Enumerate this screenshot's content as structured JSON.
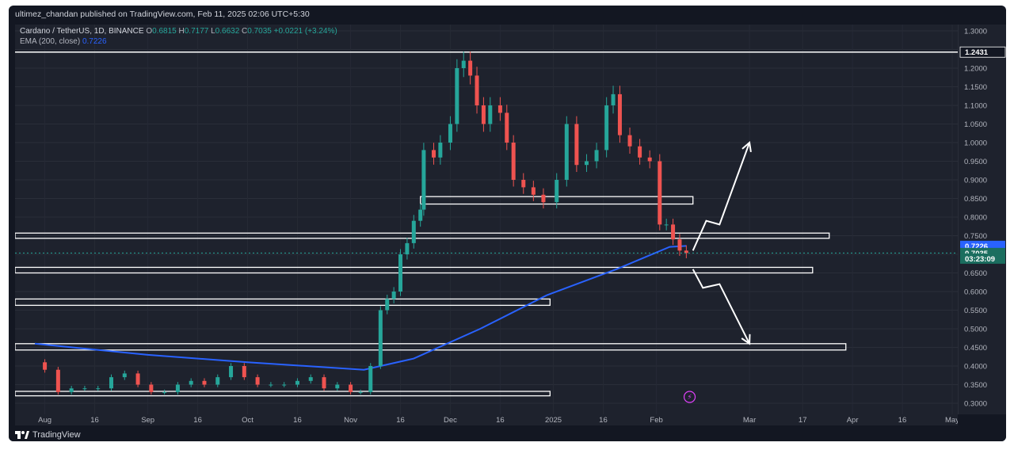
{
  "publish_line": "ultimez_chandan published on TradingView.com, Feb 11, 2025 02:06 UTC+5:30",
  "legend": {
    "symbol": "Cardano / TetherUS, 1D, BINANCE",
    "o_label": "O",
    "o": "0.6815",
    "h_label": "H",
    "h": "0.7177",
    "l_label": "L",
    "l": "0.6632",
    "c_label": "C",
    "c": "0.7035",
    "change": "+0.0221 (+3.24%)",
    "ema_label": "EMA (200, close)",
    "ema_value": "0.7226"
  },
  "footer": {
    "brand": "TradingView"
  },
  "colors": {
    "background": "#1e222d",
    "up": "#26a69a",
    "down": "#ef5350",
    "ema": "#2962ff",
    "zone_outline": "#ffffff"
  },
  "chart_data": {
    "type": "candlestick",
    "title": "Cardano / TetherUS, 1D, BINANCE",
    "xlabel": "",
    "ylabel": "",
    "ylim": [
      0.28,
      1.31
    ],
    "x_tick_labels": [
      "Aug",
      "16",
      "Sep",
      "16",
      "Oct",
      "16",
      "Nov",
      "16",
      "Dec",
      "16",
      "2025",
      "16",
      "Feb",
      "Mar",
      "17",
      "Apr",
      "16",
      "May"
    ],
    "y_ticks": [
      "1.3000",
      "1.2500",
      "1.2000",
      "1.1500",
      "1.1000",
      "1.0500",
      "1.0000",
      "0.9500",
      "0.9000",
      "0.8500",
      "0.8000",
      "0.7500",
      "0.7000",
      "0.6500",
      "0.6000",
      "0.5500",
      "0.5000",
      "0.4500",
      "0.4000",
      "0.3500",
      "0.3000"
    ],
    "price_labels": [
      {
        "text": "1.2431",
        "value": 1.2431,
        "style": "line"
      },
      {
        "text": "0.7226",
        "value": 0.7226,
        "style": "ema"
      },
      {
        "text": "0.7035",
        "value": 0.7035,
        "style": "last"
      },
      {
        "text": "03:23:09",
        "value": 0.6885,
        "style": "countdown"
      }
    ],
    "series_close": [
      [
        "2024-07-29",
        0.41
      ],
      [
        "2024-08-01",
        0.39
      ],
      [
        "2024-08-05",
        0.33
      ],
      [
        "2024-08-09",
        0.34
      ],
      [
        "2024-08-13",
        0.34
      ],
      [
        "2024-08-17",
        0.34
      ],
      [
        "2024-08-21",
        0.37
      ],
      [
        "2024-08-25",
        0.38
      ],
      [
        "2024-08-29",
        0.35
      ],
      [
        "2024-09-02",
        0.33
      ],
      [
        "2024-09-06",
        0.33
      ],
      [
        "2024-09-10",
        0.35
      ],
      [
        "2024-09-14",
        0.36
      ],
      [
        "2024-09-18",
        0.35
      ],
      [
        "2024-09-22",
        0.37
      ],
      [
        "2024-09-26",
        0.4
      ],
      [
        "2024-09-30",
        0.37
      ],
      [
        "2024-10-04",
        0.35
      ],
      [
        "2024-10-08",
        0.35
      ],
      [
        "2024-10-12",
        0.35
      ],
      [
        "2024-10-16",
        0.36
      ],
      [
        "2024-10-20",
        0.37
      ],
      [
        "2024-10-24",
        0.34
      ],
      [
        "2024-10-28",
        0.35
      ],
      [
        "2024-11-01",
        0.33
      ],
      [
        "2024-11-04",
        0.33
      ],
      [
        "2024-11-07",
        0.4
      ],
      [
        "2024-11-10",
        0.55
      ],
      [
        "2024-11-12",
        0.58
      ],
      [
        "2024-11-14",
        0.6
      ],
      [
        "2024-11-16",
        0.7
      ],
      [
        "2024-11-18",
        0.73
      ],
      [
        "2024-11-20",
        0.79
      ],
      [
        "2024-11-22",
        0.82
      ],
      [
        "2024-11-23",
        0.98
      ],
      [
        "2024-11-26",
        0.96
      ],
      [
        "2024-11-28",
        1.0
      ],
      [
        "2024-12-01",
        1.05
      ],
      [
        "2024-12-03",
        1.2
      ],
      [
        "2024-12-05",
        1.22
      ],
      [
        "2024-12-07",
        1.18
      ],
      [
        "2024-12-09",
        1.1
      ],
      [
        "2024-12-11",
        1.05
      ],
      [
        "2024-12-13",
        1.1
      ],
      [
        "2024-12-16",
        1.08
      ],
      [
        "2024-12-18",
        1.0
      ],
      [
        "2024-12-20",
        0.9
      ],
      [
        "2024-12-23",
        0.88
      ],
      [
        "2024-12-26",
        0.86
      ],
      [
        "2024-12-29",
        0.84
      ],
      [
        "2025-01-02",
        0.9
      ],
      [
        "2025-01-05",
        1.05
      ],
      [
        "2025-01-08",
        0.94
      ],
      [
        "2025-01-11",
        0.95
      ],
      [
        "2025-01-14",
        0.98
      ],
      [
        "2025-01-17",
        1.1
      ],
      [
        "2025-01-19",
        1.13
      ],
      [
        "2025-01-21",
        1.02
      ],
      [
        "2025-01-24",
        0.99
      ],
      [
        "2025-01-27",
        0.96
      ],
      [
        "2025-01-30",
        0.95
      ],
      [
        "2025-02-02",
        0.78
      ],
      [
        "2025-02-04",
        0.78
      ],
      [
        "2025-02-06",
        0.74
      ],
      [
        "2025-02-08",
        0.71
      ],
      [
        "2025-02-10",
        0.7035
      ]
    ],
    "ema_200": [
      [
        "2024-07-29",
        0.46
      ],
      [
        "2024-09-01",
        0.43
      ],
      [
        "2024-10-01",
        0.41
      ],
      [
        "2024-11-05",
        0.39
      ],
      [
        "2024-11-20",
        0.42
      ],
      [
        "2024-12-10",
        0.5
      ],
      [
        "2024-12-30",
        0.59
      ],
      [
        "2025-01-20",
        0.66
      ],
      [
        "2025-02-05",
        0.72
      ],
      [
        "2025-02-10",
        0.7226
      ]
    ],
    "horizontal_line": {
      "value": 1.2431,
      "label": "1.2431"
    },
    "zones": [
      {
        "low": 0.835,
        "high": 0.855,
        "from": "2024-11-22",
        "to": "2025-02-12"
      },
      {
        "low": 0.743,
        "high": 0.757,
        "from": "2024-07-20",
        "to": "2025-03-25"
      },
      {
        "low": 0.65,
        "high": 0.665,
        "from": "2024-07-20",
        "to": "2025-03-20"
      },
      {
        "low": 0.563,
        "high": 0.58,
        "from": "2024-07-20",
        "to": "2024-12-31"
      },
      {
        "low": 0.443,
        "high": 0.46,
        "from": "2024-07-20",
        "to": "2025-03-30"
      },
      {
        "low": 0.32,
        "high": 0.332,
        "from": "2024-07-20",
        "to": "2024-12-31"
      }
    ],
    "projections": [
      {
        "name": "bullish",
        "points": [
          [
            "2025-02-12",
            0.71
          ],
          [
            "2025-02-16",
            0.79
          ],
          [
            "2025-02-20",
            0.78
          ],
          [
            "2025-03-01",
            1.0
          ]
        ]
      },
      {
        "name": "bearish",
        "points": [
          [
            "2025-02-12",
            0.66
          ],
          [
            "2025-02-15",
            0.61
          ],
          [
            "2025-02-20",
            0.62
          ],
          [
            "2025-03-01",
            0.46
          ]
        ]
      }
    ],
    "legend_position": "top-left",
    "grid": true
  }
}
